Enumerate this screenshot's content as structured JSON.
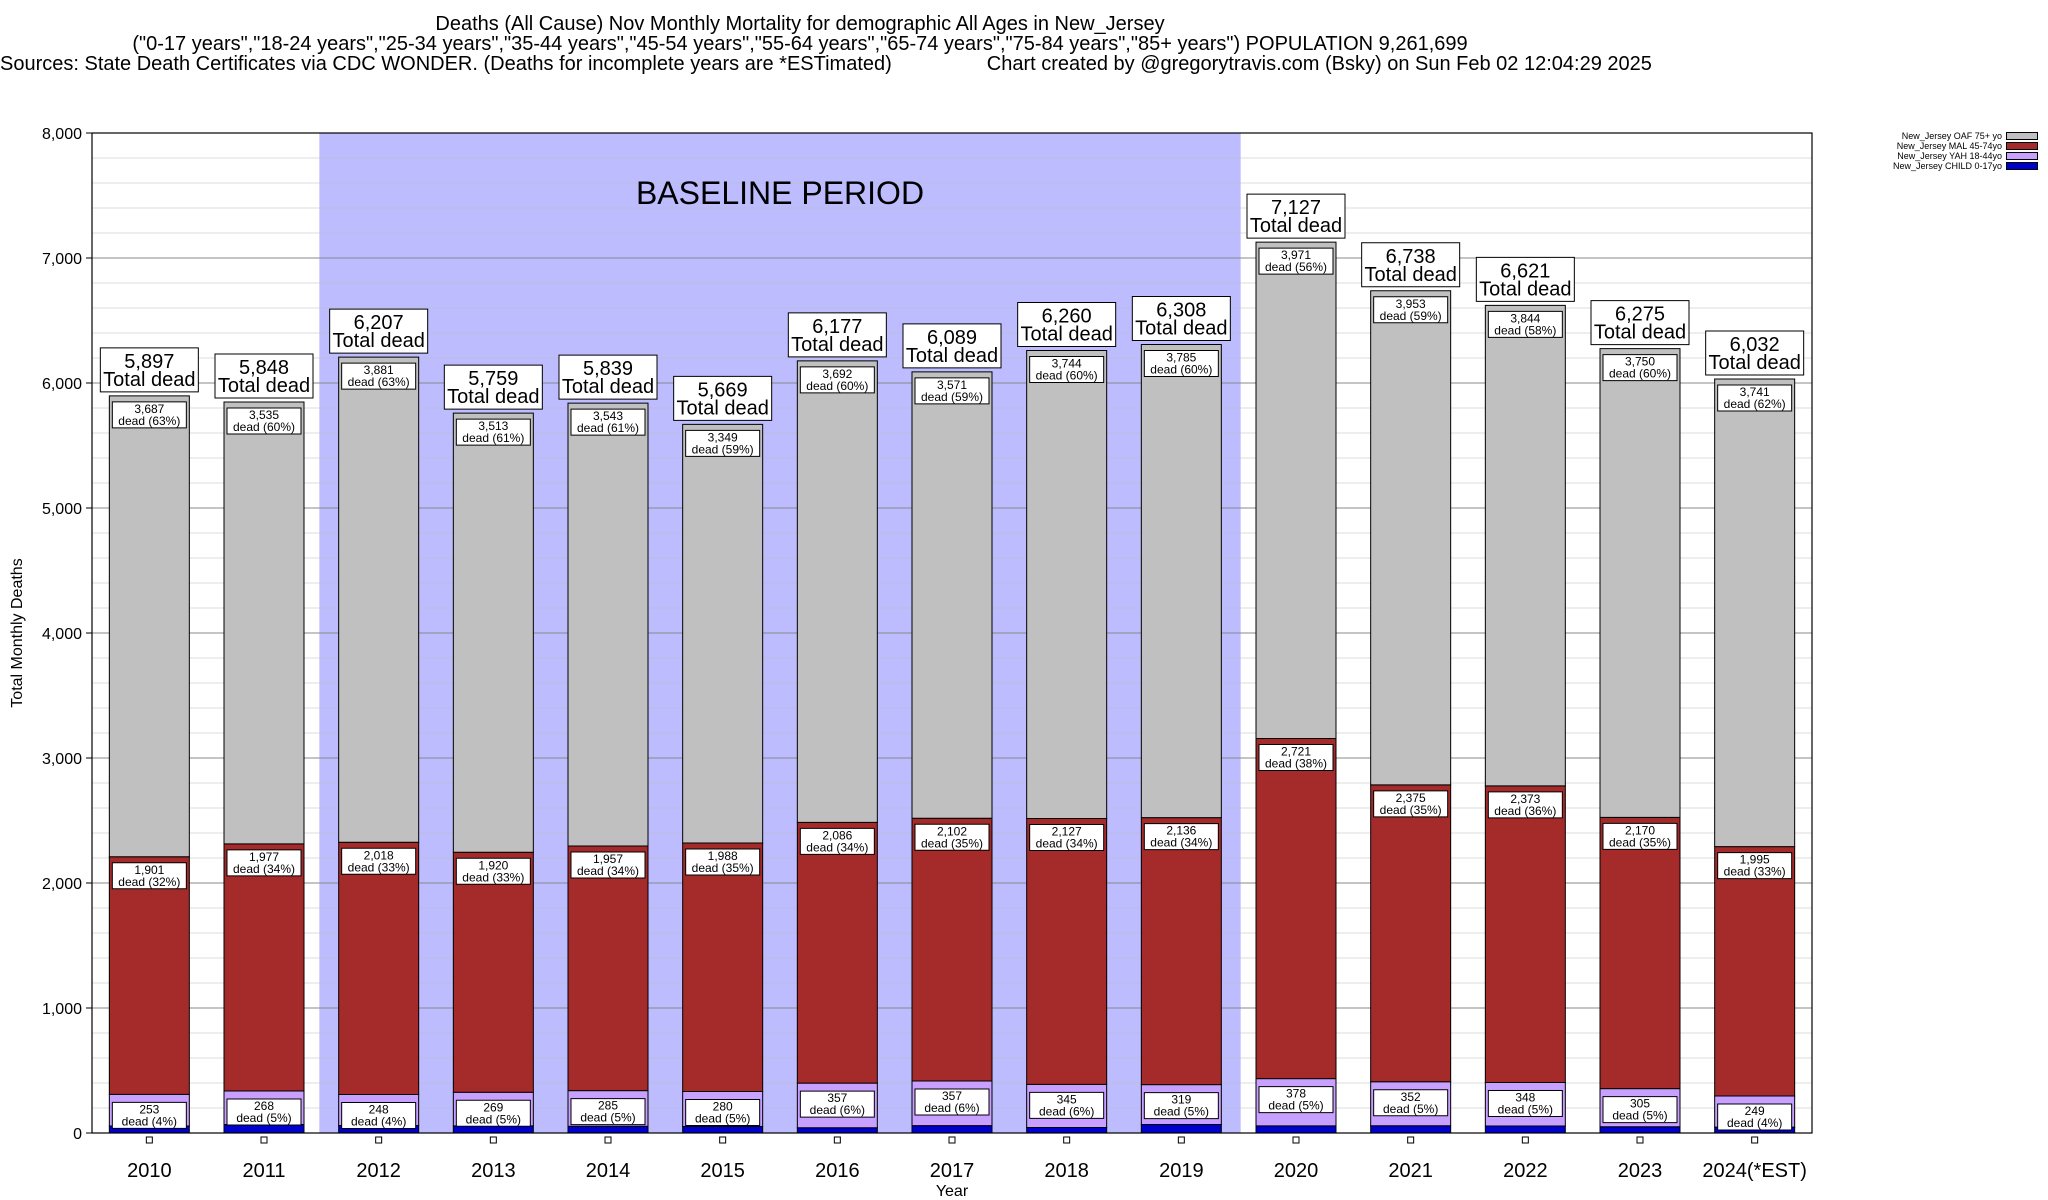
{
  "header": {
    "title": "Deaths (All Cause) Nov Monthly Mortality for demographic All Ages in New_Jersey",
    "subtitle": "(\"0-17 years\",\"18-24 years\",\"25-34 years\",\"35-44 years\",\"45-54 years\",\"55-64 years\",\"65-74 years\",\"75-84 years\",\"85+ years\") POPULATION 9,261,699",
    "sources": "Sources: State Death Certificates via CDC WONDER. (Deaths for incomplete years are *ESTimated)",
    "credit": "Chart created by @gregorytravis.com (Bsky) on Sun Feb 02 12:04:29 2025"
  },
  "chart_data": {
    "type": "bar",
    "stacked": true,
    "xlabel": "Year",
    "ylabel": "Total Monthly Deaths",
    "ylim": [
      0,
      8000
    ],
    "yticks": [
      0,
      1000,
      2000,
      3000,
      4000,
      5000,
      6000,
      7000,
      8000
    ],
    "ytick_labels": [
      "0",
      "1,000",
      "2,000",
      "3,000",
      "4,000",
      "5,000",
      "6,000",
      "7,000",
      "8,000"
    ],
    "grid": true,
    "legend_position": "top-right",
    "baseline_label": "BASELINE PERIOD",
    "baseline_range": [
      "2012",
      "2019"
    ],
    "total_suffix": "Total dead",
    "categories": [
      "2010",
      "2011",
      "2012",
      "2013",
      "2014",
      "2015",
      "2016",
      "2017",
      "2018",
      "2019",
      "2020",
      "2021",
      "2022",
      "2023",
      "2024(*EST)"
    ],
    "totals": [
      5897,
      5848,
      6207,
      5759,
      5839,
      5669,
      6177,
      6089,
      6260,
      6308,
      7127,
      6738,
      6621,
      6275,
      6032
    ],
    "totals_labels": [
      "5,897",
      "5,848",
      "6,207",
      "5,759",
      "5,839",
      "5,669",
      "6,177",
      "6,089",
      "6,260",
      "6,308",
      "7,127",
      "6,738",
      "6,621",
      "6,275",
      "6,032"
    ],
    "series": [
      {
        "name": "New_Jersey CHILD 0-17yo",
        "color": "#0000cc",
        "values": [
          56,
          68,
          60,
          57,
          54,
          52,
          42,
          59,
          44,
          68,
          57,
          58,
          56,
          50,
          47
        ]
      },
      {
        "name": "New_Jersey YAH 18-44yo",
        "color": "#c8a0ff",
        "values": [
          253,
          268,
          248,
          269,
          285,
          280,
          357,
          357,
          345,
          319,
          378,
          352,
          348,
          305,
          249
        ],
        "labels": [
          "253",
          "268",
          "248",
          "269",
          "285",
          "280",
          "357",
          "357",
          "345",
          "319",
          "378",
          "352",
          "348",
          "305",
          "249"
        ],
        "pct": [
          "dead (4%)",
          "dead (5%)",
          "dead (4%)",
          "dead (5%)",
          "dead (5%)",
          "dead (5%)",
          "dead (6%)",
          "dead (6%)",
          "dead (6%)",
          "dead (5%)",
          "dead (5%)",
          "dead (5%)",
          "dead (5%)",
          "dead (5%)",
          "dead (4%)"
        ]
      },
      {
        "name": "New_Jersey MAL 45-74yo",
        "color": "#a52a2a",
        "values": [
          1901,
          1977,
          2018,
          1920,
          1957,
          1988,
          2086,
          2102,
          2127,
          2136,
          2721,
          2375,
          2373,
          2170,
          1995
        ],
        "labels": [
          "1,901",
          "1,977",
          "2,018",
          "1,920",
          "1,957",
          "1,988",
          "2,086",
          "2,102",
          "2,127",
          "2,136",
          "2,721",
          "2,375",
          "2,373",
          "2,170",
          "1,995"
        ],
        "pct": [
          "dead (32%)",
          "dead (34%)",
          "dead (33%)",
          "dead (33%)",
          "dead (34%)",
          "dead (35%)",
          "dead (34%)",
          "dead (35%)",
          "dead (34%)",
          "dead (34%)",
          "dead (38%)",
          "dead (35%)",
          "dead (36%)",
          "dead (35%)",
          "dead (33%)"
        ]
      },
      {
        "name": "New_Jersey OAF 75+ yo",
        "color": "#c0c0c0",
        "values": [
          3687,
          3535,
          3881,
          3513,
          3543,
          3349,
          3692,
          3571,
          3744,
          3785,
          3971,
          3953,
          3844,
          3750,
          3741
        ],
        "labels": [
          "3,687",
          "3,535",
          "3,881",
          "3,513",
          "3,543",
          "3,349",
          "3,692",
          "3,571",
          "3,744",
          "3,785",
          "3,971",
          "3,953",
          "3,844",
          "3,750",
          "3,741"
        ],
        "pct": [
          "dead (63%)",
          "dead (60%)",
          "dead (63%)",
          "dead (61%)",
          "dead (61%)",
          "dead (59%)",
          "dead (60%)",
          "dead (59%)",
          "dead (60%)",
          "dead (60%)",
          "dead (56%)",
          "dead (59%)",
          "dead (58%)",
          "dead (60%)",
          "dead (62%)"
        ]
      }
    ]
  },
  "legend": {
    "items": [
      {
        "label": "New_Jersey OAF 75+ yo",
        "color": "#c0c0c0"
      },
      {
        "label": "New_Jersey MAL 45-74yo",
        "color": "#a52a2a"
      },
      {
        "label": "New_Jersey YAH 18-44yo",
        "color": "#c8a0ff"
      },
      {
        "label": "New_Jersey CHILD 0-17yo",
        "color": "#0000cc"
      }
    ]
  }
}
